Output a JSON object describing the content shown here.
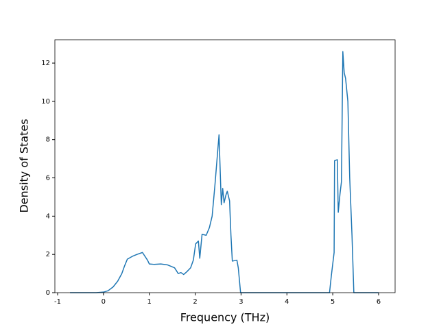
{
  "chart_data": {
    "type": "line",
    "xlabel": "Frequency (THz)",
    "ylabel": "Density of States",
    "x": [
      -0.73,
      -0.16,
      0,
      0.1,
      0.21,
      0.31,
      0.4,
      0.46,
      0.52,
      0.63,
      0.73,
      0.85,
      0.96,
      1.0,
      1.1,
      1.25,
      1.4,
      1.55,
      1.63,
      1.69,
      1.75,
      1.82,
      1.9,
      1.96,
      2.01,
      2.07,
      2.1,
      2.15,
      2.24,
      2.31,
      2.37,
      2.43,
      2.52,
      2.57,
      2.6,
      2.63,
      2.67,
      2.7,
      2.75,
      2.78,
      2.81,
      2.91,
      2.94,
      2.99,
      4.93,
      4.97,
      5.03,
      5.04,
      5.1,
      5.12,
      5.16,
      5.19,
      5.22,
      5.25,
      5.28,
      5.33,
      5.37,
      5.42,
      5.46,
      6.0
    ],
    "series": [
      {
        "color": "#1f77b4",
        "values": [
          0,
          0,
          0.03,
          0.1,
          0.3,
          0.6,
          1.0,
          1.4,
          1.75,
          1.9,
          2.0,
          2.1,
          1.7,
          1.5,
          1.48,
          1.5,
          1.45,
          1.3,
          1.0,
          1.05,
          0.95,
          1.1,
          1.3,
          1.7,
          2.55,
          2.7,
          1.8,
          3.05,
          3.0,
          3.4,
          4.0,
          5.6,
          8.25,
          4.6,
          5.45,
          4.7,
          5.1,
          5.3,
          4.8,
          3.0,
          1.65,
          1.7,
          1.3,
          0,
          0,
          0.9,
          2.1,
          6.9,
          6.95,
          4.2,
          5.2,
          5.8,
          12.6,
          11.5,
          11.2,
          10.0,
          6.0,
          3.0,
          0,
          0
        ]
      }
    ],
    "xlim": [
      -1.06,
      6.36
    ],
    "ylim": [
      0,
      13.22
    ],
    "xticks": [
      -1,
      0,
      1,
      2,
      3,
      4,
      5,
      6
    ],
    "yticks": [
      0,
      2,
      4,
      6,
      8,
      10,
      12
    ]
  }
}
